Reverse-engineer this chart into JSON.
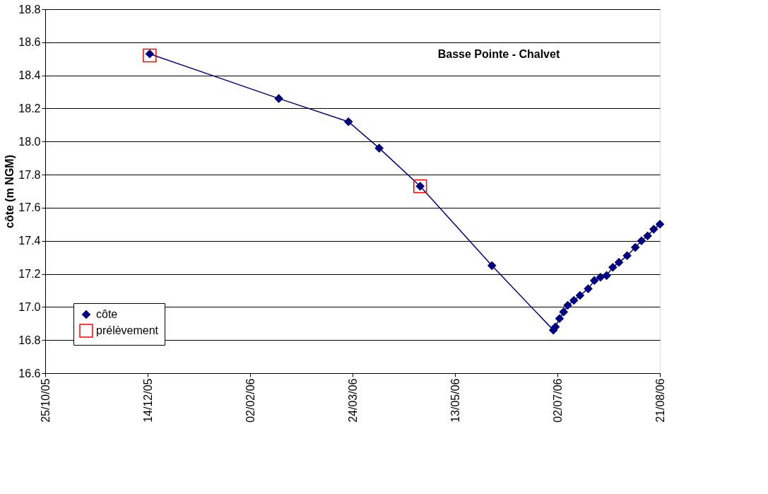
{
  "chart_data": {
    "type": "line",
    "title": "Basse Pointe - Chalvet",
    "ylabel": "côte (m NGM)",
    "xlim": [
      "2005-10-25",
      "2006-08-21"
    ],
    "xticks": [
      {
        "value": "2005-10-25",
        "label": "25/10/05"
      },
      {
        "value": "2005-12-14",
        "label": "14/12/05"
      },
      {
        "value": "2006-02-02",
        "label": "02/02/06"
      },
      {
        "value": "2006-03-24",
        "label": "24/03/06"
      },
      {
        "value": "2006-05-13",
        "label": "13/05/06"
      },
      {
        "value": "2006-07-02",
        "label": "02/07/06"
      },
      {
        "value": "2006-08-21",
        "label": "21/08/06"
      }
    ],
    "ylim": [
      16.6,
      18.8
    ],
    "yticks": [
      16.6,
      16.8,
      {
        "value": 17,
        "label": "17.0"
      },
      17.2,
      17.4,
      17.6,
      17.8,
      {
        "value": 18,
        "label": "18.0"
      },
      18.2,
      18.4,
      18.6,
      18.8
    ],
    "grid": "y",
    "legend": "bottom left",
    "series": [
      {
        "name": "côte",
        "marker": "diamond",
        "color": "#000080",
        "x": [
          "2005-12-15",
          "2006-02-16",
          "2006-03-22",
          "2006-04-06",
          "2006-04-26",
          "2006-05-31",
          "2006-06-30",
          "2006-07-01",
          "2006-07-03",
          "2006-07-05",
          "2006-07-07",
          "2006-07-10",
          "2006-07-13",
          "2006-07-17",
          "2006-07-20",
          "2006-07-23",
          "2006-07-26",
          "2006-07-29",
          "2006-08-01",
          "2006-08-05",
          "2006-08-09",
          "2006-08-12",
          "2006-08-15",
          "2006-08-18",
          "2006-08-21"
        ],
        "values": [
          18.53,
          18.26,
          18.12,
          17.96,
          17.73,
          17.25,
          16.86,
          16.88,
          16.93,
          16.97,
          17.01,
          17.04,
          17.07,
          17.11,
          17.16,
          17.18,
          17.19,
          17.24,
          17.27,
          17.31,
          17.36,
          17.4,
          17.43,
          17.47,
          17.5
        ]
      },
      {
        "name": "prélèvement",
        "type": "scatter",
        "marker": "square",
        "color": "#ff0000",
        "x": [
          "2005-12-15",
          "2006-04-26"
        ],
        "values": [
          18.52,
          17.73
        ]
      }
    ]
  }
}
